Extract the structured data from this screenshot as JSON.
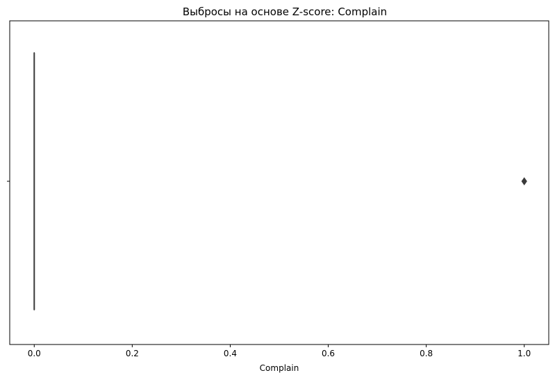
{
  "chart_data": {
    "type": "box",
    "orientation": "horizontal",
    "title": "Выбросы на основе Z-score: Complain",
    "xlabel": "Complain",
    "ylabel": "",
    "xlim": [
      -0.05,
      1.05
    ],
    "xticks": [
      "0.0",
      "0.2",
      "0.4",
      "0.6",
      "0.8",
      "1.0"
    ],
    "x_tick_values": [
      0.0,
      0.2,
      0.4,
      0.6,
      0.8,
      1.0
    ],
    "grid": false,
    "legend": "none",
    "series": [
      {
        "q1": 0.0,
        "median": 0.0,
        "q3": 0.0,
        "whisker_low": 0.0,
        "whisker_high": 0.0,
        "outliers": [
          1.0
        ]
      }
    ],
    "colors": {
      "box_line": "#3a3a3a",
      "outlier": "#3a3a3a",
      "axes": "#000000"
    }
  }
}
